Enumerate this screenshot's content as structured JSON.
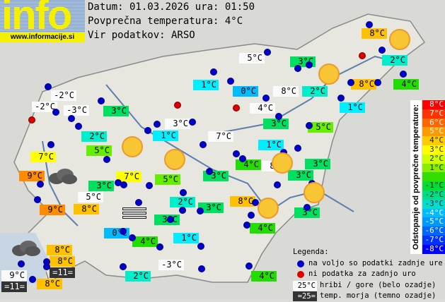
{
  "header": {
    "logo_text": "info",
    "logo_url": "www.informacije.si",
    "date_line": "Datum: 01.03.2026 ura: 01:50",
    "avg_line": "Povprečna temperatura: 4°C",
    "source_line": "Vir podatkov: ARSO"
  },
  "colors": {
    "dev5": "#ff8c00",
    "dev4": "#ffc000",
    "dev3": "#ffff00",
    "dev1": "#66ee00",
    "dev0": "#22dd00",
    "devm1": "#00e060",
    "devm2": "#00eecc",
    "devm3": "#00eeff",
    "devm4": "#00bbff",
    "hill": "#fafafa",
    "sea": "#333333",
    "station_ok": "#0000cc",
    "station_missing": "#dd0000"
  },
  "stations": [
    {
      "temp": "8°C",
      "style": "dev4"
    },
    {
      "temp": "5°C",
      "style": "hill"
    },
    {
      "temp": "3°C",
      "style": "devm1"
    },
    {
      "temp": "2°C",
      "style": "devm2"
    },
    {
      "temp": "1°C",
      "style": "devm3"
    },
    {
      "temp": "0°C",
      "style": "devm4"
    },
    {
      "temp": "8°C",
      "style": "hill"
    },
    {
      "temp": "2°C",
      "style": "devm2"
    },
    {
      "temp": "8°C",
      "style": "dev4"
    },
    {
      "temp": "4°C",
      "style": "dev0"
    },
    {
      "temp": "-2°C",
      "style": "hill"
    },
    {
      "temp": "-2°C",
      "style": "hill"
    },
    {
      "temp": "-3°C",
      "style": "hill"
    },
    {
      "temp": "3°C",
      "style": "devm1"
    },
    {
      "temp": "4°C",
      "style": "hill"
    },
    {
      "temp": "3°C",
      "style": "devm1"
    },
    {
      "temp": "1°C",
      "style": "devm3"
    },
    {
      "temp": "3°C",
      "style": "hill"
    },
    {
      "temp": "2°C",
      "style": "devm2"
    },
    {
      "temp": "7°C",
      "style": "hill"
    },
    {
      "temp": "1°C",
      "style": "devm3"
    },
    {
      "temp": "5°C",
      "style": "dev1"
    },
    {
      "temp": "5°C",
      "style": "dev1"
    },
    {
      "temp": "1°C",
      "style": "devm3"
    },
    {
      "temp": "7°C",
      "style": "dev3"
    },
    {
      "temp": "4°C",
      "style": "dev0"
    },
    {
      "temp": "8°C",
      "style": "hill"
    },
    {
      "temp": "3°C",
      "style": "devm1"
    },
    {
      "temp": "3°C",
      "style": "devm1"
    },
    {
      "temp": "3°C",
      "style": "devm1"
    },
    {
      "temp": "9°C",
      "style": "dev5"
    },
    {
      "temp": "7°C",
      "style": "dev3"
    },
    {
      "temp": "5°C",
      "style": "dev1"
    },
    {
      "temp": "3°C",
      "style": "devm1"
    },
    {
      "temp": "5°C",
      "style": "hill"
    },
    {
      "temp": "8°C",
      "style": "dev4"
    },
    {
      "temp": "2°C",
      "style": "devm2"
    },
    {
      "temp": "3°C",
      "style": "devm1"
    },
    {
      "temp": "3°C",
      "style": "devm1"
    },
    {
      "temp": "9°C",
      "style": "dev5"
    },
    {
      "temp": "8°C",
      "style": "dev4"
    },
    {
      "temp": "3°C",
      "style": "devm1"
    },
    {
      "temp": "4°C",
      "style": "dev0"
    },
    {
      "temp": "0°C",
      "style": "devm4"
    },
    {
      "temp": "4°C",
      "style": "dev0"
    },
    {
      "temp": "1°C",
      "style": "devm3"
    },
    {
      "temp": "8°C",
      "style": "dev4"
    },
    {
      "temp": "8°C",
      "style": "dev4"
    },
    {
      "temp": "=11=",
      "style": "sea"
    },
    {
      "temp": "9°C",
      "style": "hill"
    },
    {
      "temp": "=11=",
      "style": "sea"
    },
    {
      "temp": "8°C",
      "style": "dev4"
    },
    {
      "temp": "2°C",
      "style": "devm2"
    },
    {
      "temp": "-3°C",
      "style": "hill"
    },
    {
      "temp": "4°C",
      "style": "dev0"
    }
  ],
  "weather_icons": [
    "sun",
    "sun",
    "sun",
    "sun",
    "sun",
    "sun",
    "sun",
    "cloud",
    "cloud",
    "fog"
  ],
  "colorbar": {
    "title": "Odstopanje od povprečne temperature:",
    "steps": [
      {
        "label": "8°C",
        "color": "#ff0000"
      },
      {
        "label": "7°C",
        "color": "#ff3300"
      },
      {
        "label": "6°C",
        "color": "#ff6600"
      },
      {
        "label": "5°C",
        "color": "#ff9900"
      },
      {
        "label": "4°C",
        "color": "#ffcc00"
      },
      {
        "label": "3°C",
        "color": "#ffff00"
      },
      {
        "label": "2°C",
        "color": "#ccff00"
      },
      {
        "label": "1°C",
        "color": "#88ee00"
      },
      {
        "label": "",
        "color": "#33dd00"
      },
      {
        "label": "-1°C",
        "color": "#00dd33"
      },
      {
        "label": "-2°C",
        "color": "#00dd88"
      },
      {
        "label": "-3°C",
        "color": "#00ddcc"
      },
      {
        "label": "-4°C",
        "color": "#00bbff"
      },
      {
        "label": "-5°C",
        "color": "#0099ff"
      },
      {
        "label": "-6°C",
        "color": "#0066ff"
      },
      {
        "label": "-7°C",
        "color": "#0033ff"
      },
      {
        "label": "-8°C",
        "color": "#0000ff"
      }
    ]
  },
  "legend": {
    "title": "Legenda:",
    "available": "na voljo so podatki zadnje ure",
    "missing": "ni podatka za zadnjo uro",
    "hill_sample": "25°C",
    "hill_text": "hribi / gore (belo ozadje)",
    "sea_sample": "=25=",
    "sea_text": "temp. morja (temno ozadje)"
  }
}
